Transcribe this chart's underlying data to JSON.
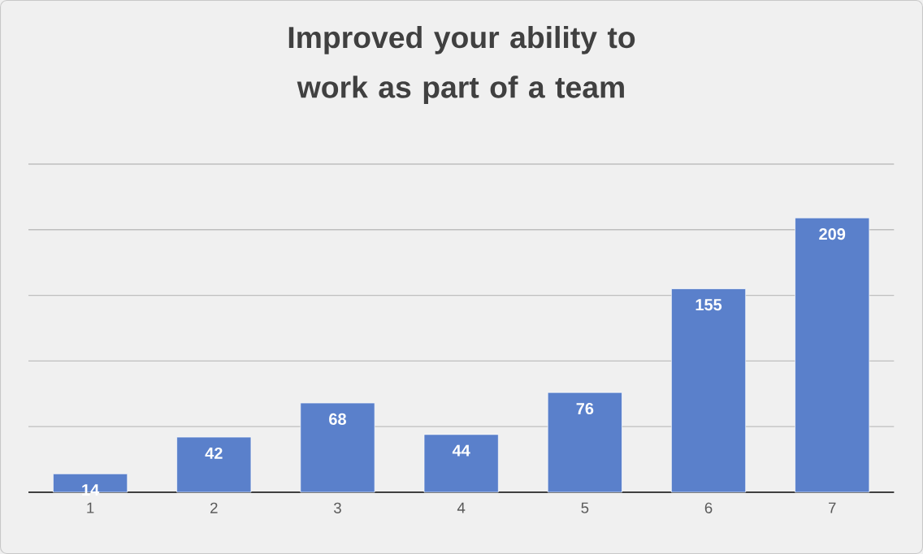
{
  "chart_data": {
    "type": "bar",
    "title": "Improved your ability to work as part of a team",
    "categories": [
      "1",
      "2",
      "3",
      "4",
      "5",
      "6",
      "7"
    ],
    "values": [
      14,
      42,
      68,
      44,
      76,
      155,
      209
    ],
    "color": "#5a80cb",
    "data_labels": true,
    "ylim": [
      0,
      250
    ],
    "yticks": [
      {
        "value": 0,
        "label": null
      },
      {
        "value": 50,
        "label": null
      },
      {
        "value": 100,
        "label": null
      },
      {
        "value": 150,
        "label": null
      },
      {
        "value": 200,
        "label": null
      },
      {
        "value": 250,
        "label": null
      }
    ],
    "grid": "y",
    "tick_labels": "x"
  }
}
